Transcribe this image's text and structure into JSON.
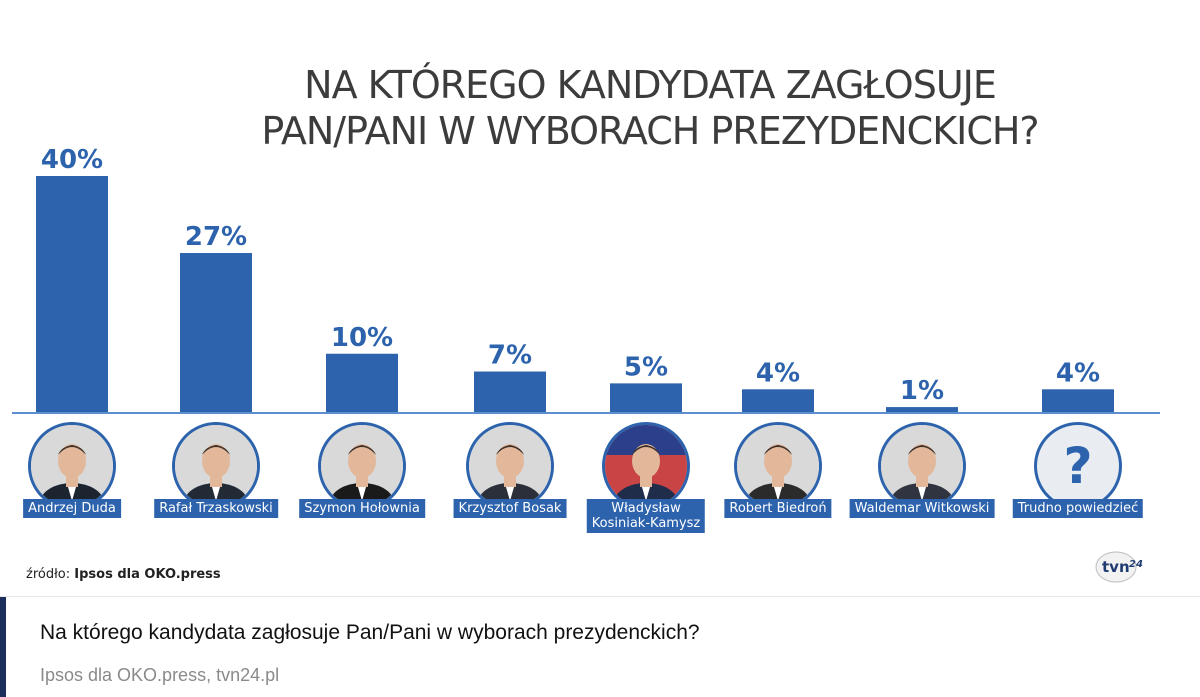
{
  "chart_data": {
    "type": "bar",
    "title_lines": [
      "NA KTÓREGO KANDYDATA ZAGŁOSUJE",
      "PAN/PANI W WYBORACH PREZYDENCKICH?"
    ],
    "categories": [
      "Andrzej Duda",
      "Rafał Trzaskowski",
      "Szymon Hołownia",
      "Krzysztof Bosak",
      "Władysław Kosiniak-Kamysz",
      "Robert Biedroń",
      "Waldemar Witkowski",
      "Trudno powiedzieć"
    ],
    "category_label_lines": [
      [
        "Andrzej Duda"
      ],
      [
        "Rafał Trzaskowski"
      ],
      [
        "Szymon Hołownia"
      ],
      [
        "Krzysztof Bosak"
      ],
      [
        "Władysław",
        "Kosiniak-Kamysz"
      ],
      [
        "Robert Biedroń"
      ],
      [
        "Waldemar Witkowski"
      ],
      [
        "Trudno powiedzieć"
      ]
    ],
    "values": [
      40,
      27,
      10,
      7,
      5,
      4,
      1,
      4
    ],
    "value_labels": [
      "40%",
      "27%",
      "10%",
      "7%",
      "5%",
      "4%",
      "1%",
      "4%"
    ],
    "ylim": [
      0,
      40
    ],
    "grid": false,
    "bar_color": "#2d63ad",
    "baseline_color": "#5d8fd0"
  },
  "source": {
    "prefix": "źródło:",
    "name": "Ipsos dla OKO.press"
  },
  "logo": {
    "text": "tvn24",
    "icon": "tvn24-logo-icon"
  },
  "unknown_avatar_glyph": "?",
  "caption": {
    "title": "Na którego kandydata zagłosuje Pan/Pani w wyborach prezydenckich?",
    "source": "Ipsos dla OKO.press, tvn24.pl"
  },
  "colors": {
    "accent": "#1c2f5c",
    "bar": "#2d63ad",
    "value_text": "#2d63ad"
  }
}
